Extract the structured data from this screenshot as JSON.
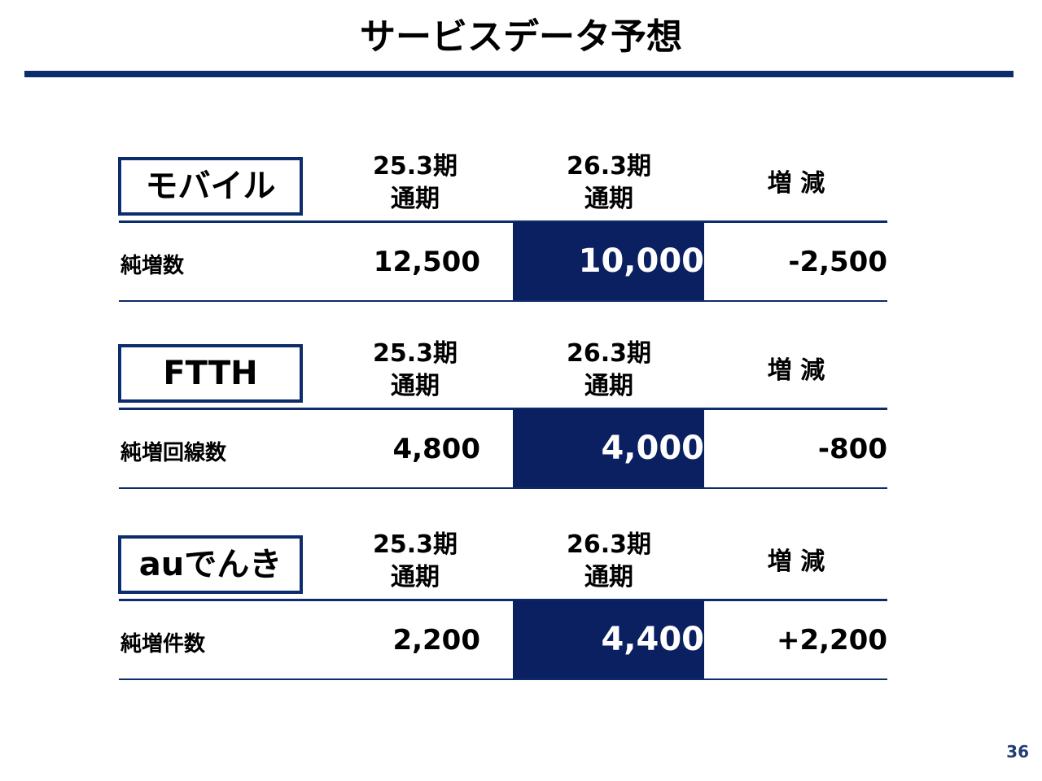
{
  "header": {
    "title": "サービスデータ予想"
  },
  "sections": [
    {
      "label": "モバイル",
      "columns": [
        [
          "25.3期",
          "通期"
        ],
        [
          "26.3期",
          "通期"
        ],
        [
          "増 減"
        ]
      ],
      "row": {
        "label": "純増数",
        "values": [
          "12,500",
          "10,000",
          "-2,500"
        ]
      }
    },
    {
      "label": "FTTH",
      "columns": [
        [
          "25.3期",
          "通期"
        ],
        [
          "26.3期",
          "通期"
        ],
        [
          "増 減"
        ]
      ],
      "row": {
        "label": "純増回線数",
        "values": [
          "4,800",
          "4,000",
          "-800"
        ]
      }
    },
    {
      "label": "auでんき",
      "columns": [
        [
          "25.3期",
          "通期"
        ],
        [
          "26.3期",
          "通期"
        ],
        [
          "増 減"
        ]
      ],
      "row": {
        "label": "純増件数",
        "values": [
          "2,200",
          "4,400",
          "+2,200"
        ]
      }
    }
  ],
  "footer": {
    "page_number": "36"
  }
}
